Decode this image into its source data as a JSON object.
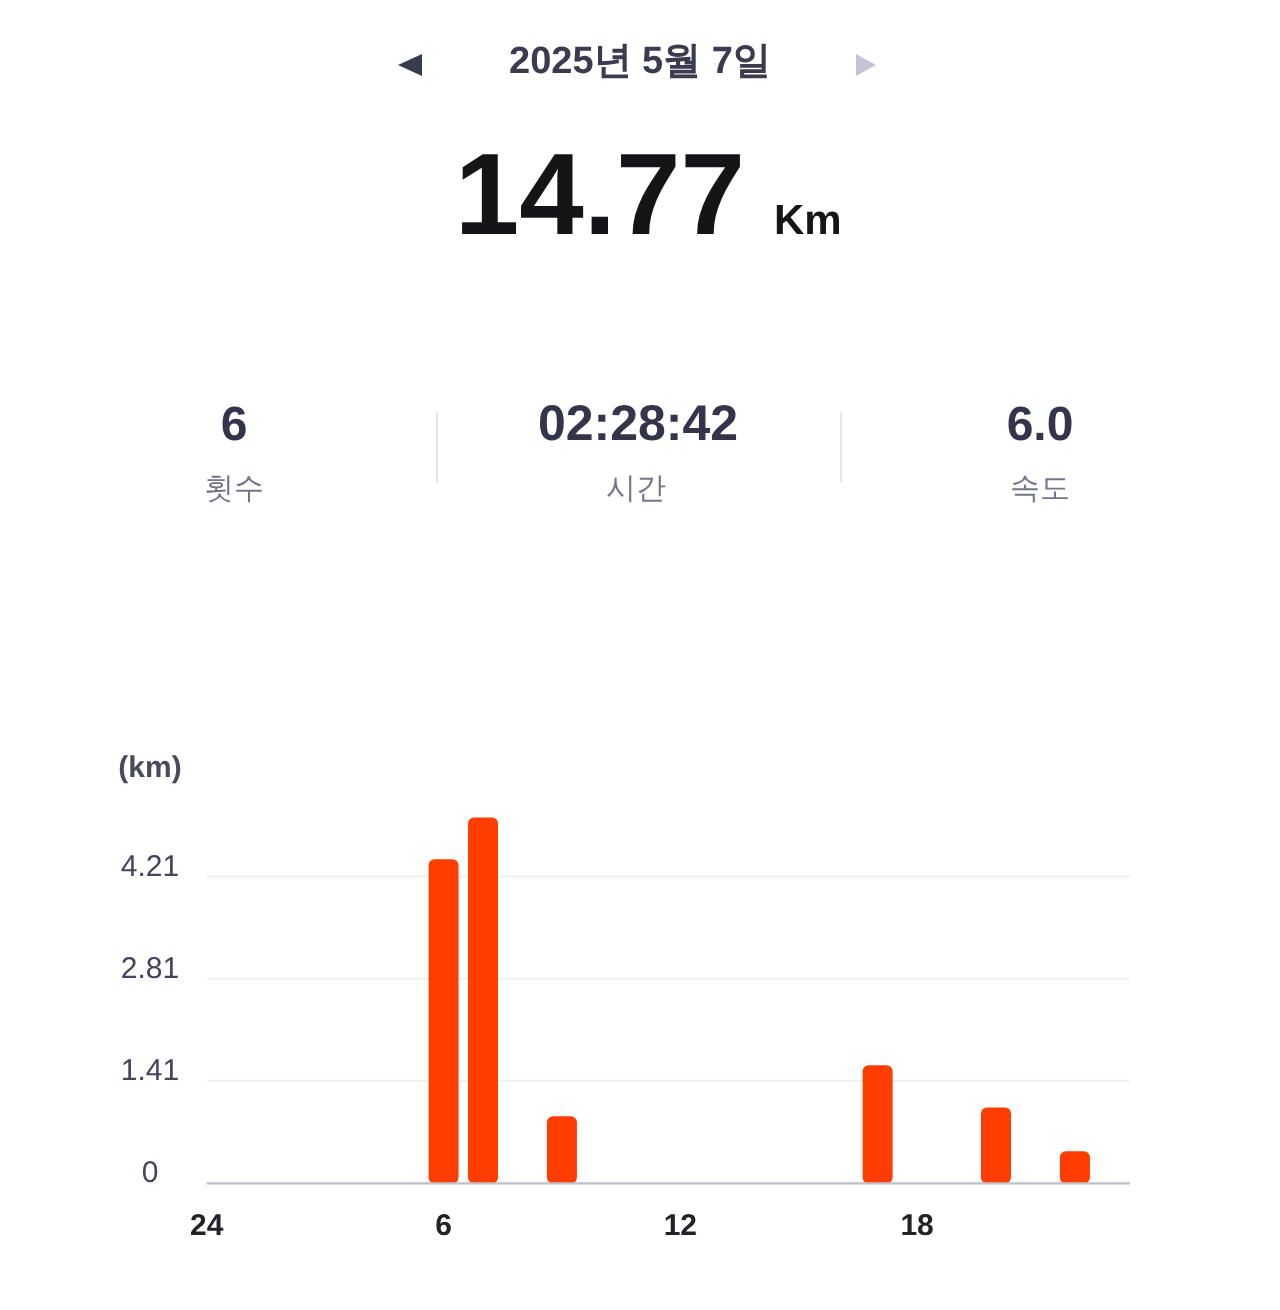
{
  "chart_data": {
    "type": "bar",
    "title": "2025년 5월 7일",
    "annotations": [
      "14.77",
      "Km",
      "6",
      "횟수",
      "02:28:42",
      "시간",
      "6.0",
      "속도"
    ],
    "ylabel": "(km)",
    "categories": [
      "24",
      null,
      null,
      null,
      null,
      null,
      "6",
      null,
      null,
      null,
      null,
      null,
      "12",
      null,
      null,
      null,
      null,
      null,
      "18",
      null,
      null,
      null,
      null,
      null
    ],
    "values": [
      null,
      null,
      null,
      null,
      null,
      null,
      4.45,
      5.02,
      null,
      0.92,
      null,
      null,
      null,
      null,
      null,
      null,
      null,
      1.62,
      null,
      null,
      1.04,
      null,
      0.44,
      null
    ],
    "color": "#ff3d00",
    "ylim": [
      0,
      5.02
    ],
    "yticks": [
      0,
      1.41,
      2.81,
      4.21
    ],
    "grid": "y"
  }
}
